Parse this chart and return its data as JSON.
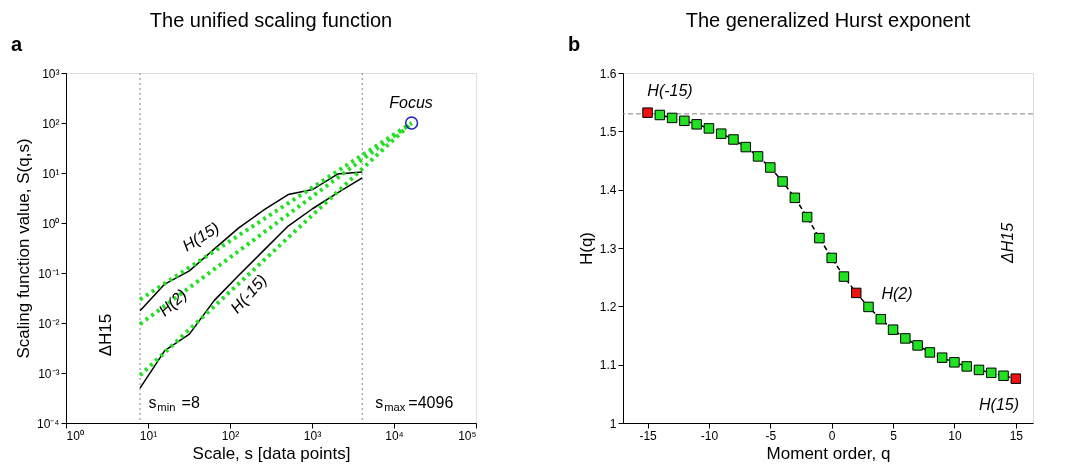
{
  "chart_data": [
    {
      "type": "line",
      "title": "The unified scaling function",
      "xlabel": "Scale, s [data points]",
      "ylabel": "Scaling function value, S(q,s)",
      "log": "xy",
      "grid": false,
      "xlim": [
        1,
        100000
      ],
      "ylim": [
        0.0001,
        1000
      ],
      "xticks": [
        {
          "value": 1,
          "label": "10⁰"
        },
        {
          "value": 10,
          "label": "10¹"
        },
        {
          "value": 100,
          "label": "10²"
        },
        {
          "value": 1000,
          "label": "10³"
        },
        {
          "value": 10000,
          "label": "10⁴"
        },
        {
          "value": 100000,
          "label": "10⁵"
        }
      ],
      "yticks": [
        {
          "value": 0.0001,
          "label": "10⁻⁴"
        },
        {
          "value": 0.001,
          "label": "10⁻³"
        },
        {
          "value": 0.01,
          "label": "10⁻²"
        },
        {
          "value": 0.1,
          "label": "10⁻¹"
        },
        {
          "value": 1,
          "label": "10⁰"
        },
        {
          "value": 10,
          "label": "10¹"
        },
        {
          "value": 100,
          "label": "10²"
        },
        {
          "value": 1000,
          "label": "10³"
        }
      ],
      "series": [
        {
          "type": "line",
          "color": "#000000",
          "x": [
            8,
            16,
            32,
            64,
            128,
            256,
            512,
            1024,
            2048,
            4096
          ],
          "values": [
            0.0175,
            0.06,
            0.11,
            0.3,
            0.8,
            1.8,
            3.7,
            4.7,
            9.5,
            10.5
          ]
        },
        {
          "type": "line",
          "color": "#000000",
          "x": [
            8,
            16,
            32,
            64,
            128,
            256,
            512,
            1024,
            2048,
            4096
          ],
          "values": [
            0.0005,
            0.0028,
            0.006,
            0.028,
            0.09,
            0.28,
            0.87,
            1.95,
            4,
            8
          ]
        },
        {
          "type": "line",
          "color": "#22e022",
          "line_style": "dotted",
          "x": [
            8,
            16384
          ],
          "values": [
            0.0295,
            100
          ]
        },
        {
          "type": "line",
          "color": "#22e022",
          "line_style": "dotted",
          "x": [
            8,
            16384
          ],
          "values": [
            0.0095,
            100
          ]
        },
        {
          "type": "line",
          "color": "#22e022",
          "line_style": "dotted",
          "x": [
            8,
            16384
          ],
          "values": [
            0.0009,
            100
          ]
        },
        {
          "type": "scatter",
          "color": "#1f1fbf",
          "marker": "circle",
          "x": [
            16384
          ],
          "values": [
            100
          ]
        }
      ],
      "ref_lines": [
        {
          "axis": "x",
          "value": 8,
          "color": "#808080",
          "line_style": "dotted"
        },
        {
          "axis": "x",
          "value": 4096,
          "color": "#808080",
          "line_style": "dotted"
        }
      ],
      "annotations": [
        "a",
        "H(15)",
        "H(2)",
        "H(-15)",
        "Focus",
        "ΔH15",
        "s$_{min}$=8",
        "s$_{max}$=4096"
      ]
    },
    {
      "type": "line",
      "title": "The generalized Hurst exponent",
      "xlabel": "Moment order, q",
      "ylabel": "H(q)",
      "grid": false,
      "xlim": [
        -17,
        16.4
      ],
      "ylim": [
        1,
        1.6
      ],
      "xticks": [
        -15,
        -10,
        -5,
        0,
        5,
        10,
        15
      ],
      "yticks": [
        1,
        1.1,
        1.2,
        1.3,
        1.4,
        1.5,
        1.6
      ],
      "series": [
        {
          "type": "line",
          "color": "#000000",
          "line_style": "dashed",
          "marker": "square",
          "x": [
            -15,
            -14,
            -13,
            -12,
            -11,
            -10,
            -9,
            -8,
            -7,
            -6,
            -5,
            -4,
            -3,
            -2,
            -1,
            0,
            1,
            2,
            3,
            4,
            5,
            6,
            7,
            8,
            9,
            10,
            11,
            12,
            13,
            14,
            15
          ],
          "values": [
            1.532,
            1.528,
            1.523,
            1.518,
            1.512,
            1.505,
            1.496,
            1.486,
            1.473,
            1.457,
            1.438,
            1.414,
            1.386,
            1.353,
            1.317,
            1.283,
            1.251,
            1.223,
            1.199,
            1.178,
            1.16,
            1.145,
            1.133,
            1.121,
            1.112,
            1.104,
            1.097,
            1.091,
            1.086,
            1.081,
            1.076
          ],
          "colors": [
            "#ee1111",
            "#22e022",
            "#22e022",
            "#22e022",
            "#22e022",
            "#22e022",
            "#22e022",
            "#22e022",
            "#22e022",
            "#22e022",
            "#22e022",
            "#22e022",
            "#22e022",
            "#22e022",
            "#22e022",
            "#22e022",
            "#22e022",
            "#ee1111",
            "#22e022",
            "#22e022",
            "#22e022",
            "#22e022",
            "#22e022",
            "#22e022",
            "#22e022",
            "#22e022",
            "#22e022",
            "#22e022",
            "#22e022",
            "#22e022",
            "#ee1111"
          ]
        }
      ],
      "ref_lines": [
        {
          "axis": "y",
          "value": 1.53,
          "color": "#808080",
          "line_style": "dashed"
        }
      ],
      "annotations": [
        "b",
        "H(-15)",
        "H(2)",
        "H(15)",
        "ΔH15"
      ]
    }
  ]
}
